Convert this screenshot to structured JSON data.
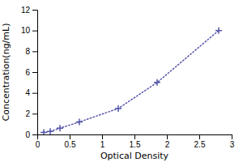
{
  "chart_data": {
    "type": "line",
    "x": [
      0.1,
      0.2,
      0.35,
      0.65,
      1.25,
      1.85,
      2.8
    ],
    "values": [
      0.2,
      0.3,
      0.6,
      1.2,
      2.5,
      5.0,
      10.0
    ],
    "color": "#5555aa",
    "marker": "plus",
    "line_style": "dotted",
    "xlabel": "Optical Density",
    "ylabel": "Concentration(ng/mL)",
    "xlim": [
      0,
      3
    ],
    "ylim": [
      0,
      12
    ],
    "xticks": [
      0,
      0.5,
      1,
      1.5,
      2,
      2.5,
      3
    ],
    "yticks": [
      0,
      2,
      4,
      6,
      8,
      10,
      12
    ]
  }
}
